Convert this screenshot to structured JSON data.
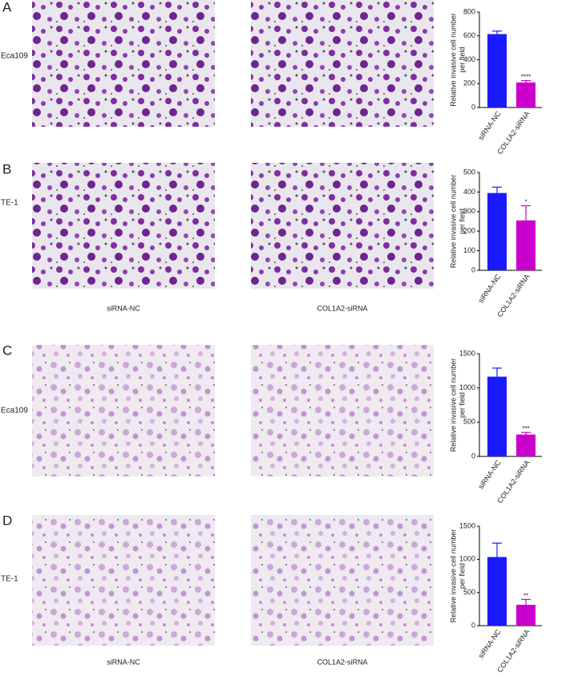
{
  "panels": [
    {
      "letter": "A",
      "row_label": "Eca109"
    },
    {
      "letter": "B",
      "row_label": "TE-1",
      "column_labels": [
        "siRNA-NC",
        "COL1A2-siRNA"
      ]
    },
    {
      "letter": "C",
      "row_label": "Eca109"
    },
    {
      "letter": "D",
      "row_label": "TE-1",
      "column_labels": [
        "siRNA-NC",
        "COL1A2-siRNA"
      ]
    }
  ],
  "chart_data": [
    {
      "type": "bar",
      "y_label": [
        "Relative invasive cell number",
        "per field"
      ],
      "categories": [
        "siRNA-NC",
        "COL1A2-siRNA"
      ],
      "values": [
        615,
        210
      ],
      "errors": [
        25,
        15
      ],
      "significance": [
        null,
        "****"
      ],
      "colors": [
        "#1a1aff",
        "#cc00cc"
      ],
      "ylim": [
        0,
        800
      ],
      "yticks": [
        0,
        200,
        400,
        600,
        800
      ]
    },
    {
      "type": "bar",
      "y_label": [
        "Relative invasive cell number",
        "per field"
      ],
      "categories": [
        "siRNA-NC",
        "COL1A2-siRNA"
      ],
      "values": [
        395,
        255
      ],
      "errors": [
        30,
        75
      ],
      "significance": [
        null,
        "*"
      ],
      "colors": [
        "#1a1aff",
        "#cc00cc"
      ],
      "ylim": [
        0,
        500
      ],
      "yticks": [
        0,
        100,
        200,
        300,
        400,
        500
      ]
    },
    {
      "type": "bar",
      "y_label": [
        "Relative invasive cell number",
        "per field"
      ],
      "categories": [
        "siRNA-NC",
        "COL1A2-siRNA"
      ],
      "values": [
        1165,
        320
      ],
      "errors": [
        125,
        30
      ],
      "significance": [
        null,
        "***"
      ],
      "colors": [
        "#1a1aff",
        "#cc00cc"
      ],
      "ylim": [
        0,
        1500
      ],
      "yticks": [
        0,
        500,
        1000,
        1500
      ]
    },
    {
      "type": "bar",
      "y_label": [
        "Relative invasive cell number",
        "per field"
      ],
      "categories": [
        "siRNA-NC",
        "COL1A2-siRNA"
      ],
      "values": [
        1035,
        315
      ],
      "errors": [
        210,
        80
      ],
      "significance": [
        null,
        "**"
      ],
      "colors": [
        "#1a1aff",
        "#cc00cc"
      ],
      "ylim": [
        0,
        1500
      ],
      "yticks": [
        0,
        500,
        1000,
        1500
      ]
    }
  ]
}
